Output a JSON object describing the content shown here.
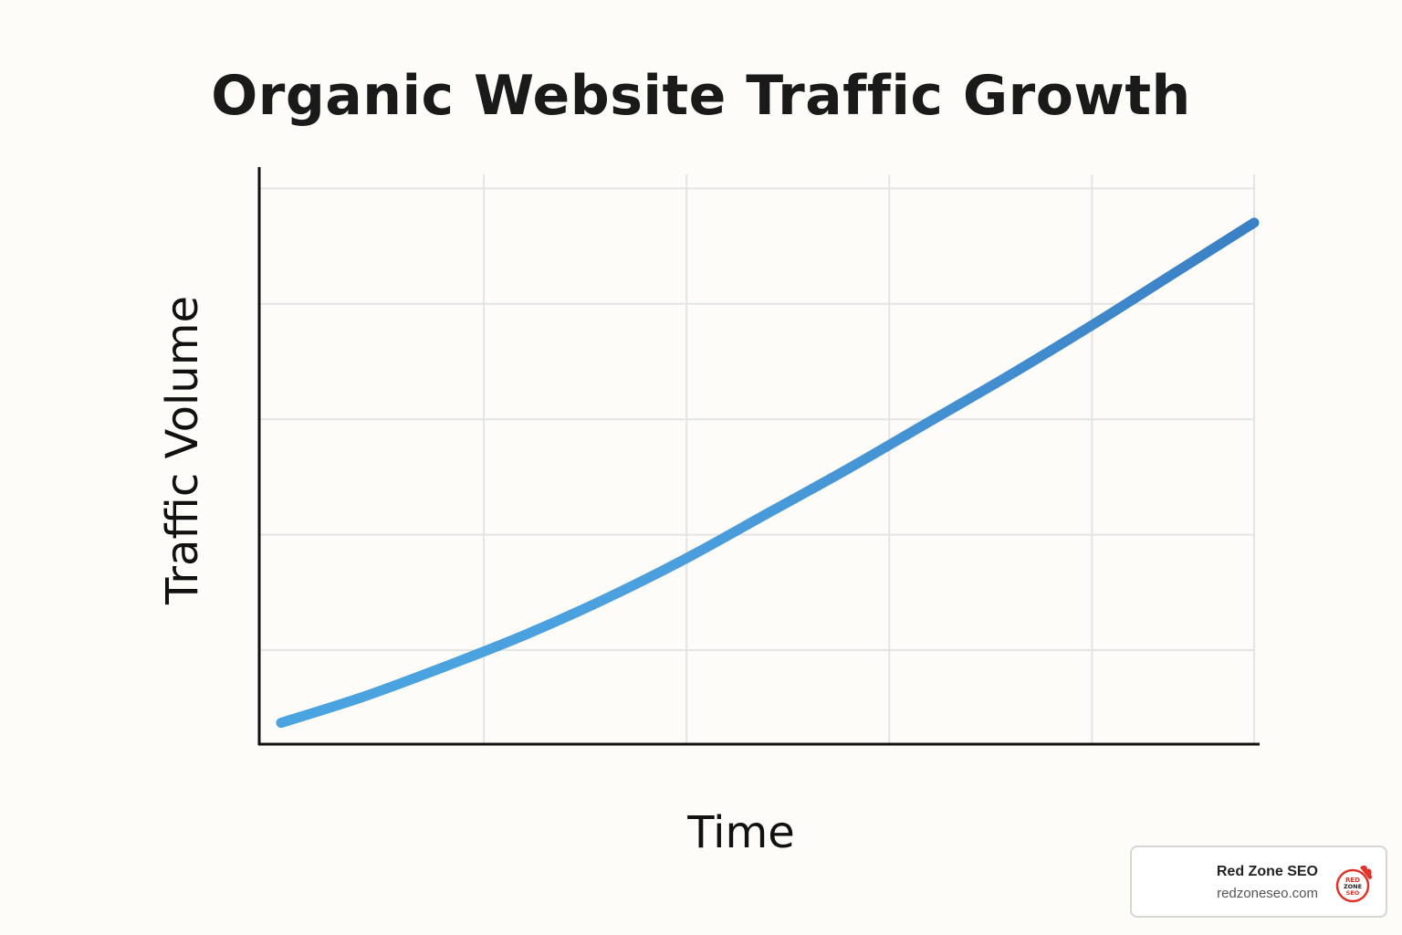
{
  "chart_data": {
    "type": "line",
    "title": "Organic Website Traffic Growth",
    "xlabel": "Time",
    "ylabel": "Traffic Volume",
    "x": [
      0,
      1,
      2,
      3,
      4,
      5,
      6,
      7,
      8,
      9,
      10,
      11,
      12
    ],
    "series": [
      {
        "values": [
          5,
          11,
          18,
          25.5,
          34,
          43.5,
          54,
          64.5,
          75.5,
          86.5,
          98,
          110,
          122
        ]
      }
    ],
    "xlim": [
      0,
      12
    ],
    "ylim": [
      0,
      135
    ],
    "xticks": [
      0,
      2.5,
      5,
      7.5,
      10,
      12
    ],
    "yticks": [
      22,
      49,
      76,
      103,
      130
    ],
    "x_tick_labels": false,
    "y_tick_labels": false,
    "grid": true,
    "legend": "none",
    "colors": {
      "line_start": "#4aa4df",
      "line_end": "#3a7fc4",
      "grid": "#e4e4e4",
      "axis": "#111111"
    }
  },
  "badge": {
    "name": "Red Zone SEO",
    "url": "redzoneseo.com",
    "logo_text": "RED ZONE SEO",
    "logo_color": "#e0332a"
  }
}
